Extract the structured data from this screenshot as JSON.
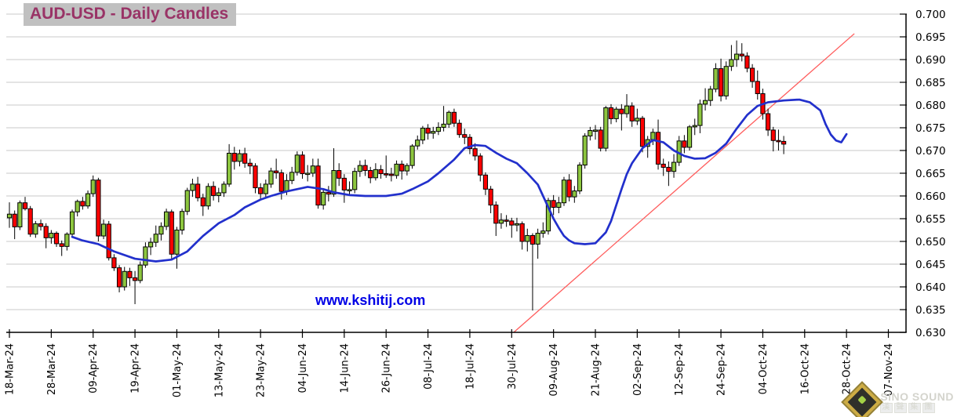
{
  "title": "AUD-USD - Daily Candles",
  "watermark": "www.kshitij.com",
  "brand": {
    "name": "SiNO SOUND",
    "name_cn": "漢聲集團"
  },
  "colors": {
    "background": "#ffffff",
    "title_text": "#993366",
    "title_bg": "#c0c0c0",
    "watermark_text": "#0000e6",
    "gridline": "#c9c9c9",
    "axis": "#000000",
    "candle_up": "#8dc63f",
    "candle_down": "#ff0000",
    "candle_outline": "#000000",
    "ma_line": "#2230cc",
    "trend_line": "#ff5c5c"
  },
  "chart_data": {
    "type": "candlestick",
    "title": "AUD-USD - Daily Candles",
    "grid": "horizontal-on",
    "legend": "none",
    "y_axis": {
      "side": "right",
      "min": 0.63,
      "max": 0.7,
      "step": 0.005,
      "tick_labels": [
        "0.700",
        "0.695",
        "0.690",
        "0.685",
        "0.680",
        "0.675",
        "0.670",
        "0.665",
        "0.660",
        "0.655",
        "0.650",
        "0.645",
        "0.640",
        "0.635",
        "0.630"
      ]
    },
    "x_axis": {
      "side": "bottom",
      "tick_every_days": 8,
      "label_rotation_deg": -90,
      "tick_labels": [
        "18-Mar-24",
        "28-Mar-24",
        "09-Apr-24",
        "19-Apr-24",
        "01-May-24",
        "13-May-24",
        "23-May-24",
        "04-Jun-24",
        "14-Jun-24",
        "26-Jun-24",
        "08-Jul-24",
        "18-Jul-24",
        "30-Jul-24",
        "09-Aug-24",
        "21-Aug-24",
        "02-Sep-24",
        "12-Sep-24",
        "24-Sep-24",
        "04-Oct-24",
        "16-Oct-24",
        "28-Oct-24",
        "07-Nov-24"
      ],
      "total_slots": 169
    },
    "candles_format": [
      "open",
      "high",
      "low",
      "close"
    ],
    "candles": [
      [
        0.6552,
        0.6586,
        0.653,
        0.656
      ],
      [
        0.656,
        0.6568,
        0.6505,
        0.6532
      ],
      [
        0.6532,
        0.659,
        0.6525,
        0.6585
      ],
      [
        0.6585,
        0.6598,
        0.6568,
        0.6572
      ],
      [
        0.6572,
        0.6578,
        0.651,
        0.6516
      ],
      [
        0.6516,
        0.6545,
        0.6508,
        0.6539
      ],
      [
        0.6539,
        0.6548,
        0.6524,
        0.6533
      ],
      [
        0.6533,
        0.654,
        0.6485,
        0.6508
      ],
      [
        0.6508,
        0.6525,
        0.6495,
        0.6518
      ],
      [
        0.6518,
        0.6522,
        0.6488,
        0.6495
      ],
      [
        0.6495,
        0.6502,
        0.6468,
        0.6489
      ],
      [
        0.6489,
        0.652,
        0.648,
        0.6516
      ],
      [
        0.6516,
        0.657,
        0.651,
        0.6565
      ],
      [
        0.6565,
        0.6592,
        0.6555,
        0.6588
      ],
      [
        0.6588,
        0.6598,
        0.657,
        0.6578
      ],
      [
        0.6578,
        0.6612,
        0.6572,
        0.6605
      ],
      [
        0.6605,
        0.6645,
        0.6598,
        0.6635
      ],
      [
        0.6635,
        0.664,
        0.65,
        0.6512
      ],
      [
        0.6512,
        0.6548,
        0.6505,
        0.6538
      ],
      [
        0.6538,
        0.6545,
        0.6458,
        0.6464
      ],
      [
        0.6464,
        0.6472,
        0.6435,
        0.6442
      ],
      [
        0.6442,
        0.6448,
        0.6388,
        0.64
      ],
      [
        0.64,
        0.6444,
        0.6392,
        0.6434
      ],
      [
        0.6434,
        0.6442,
        0.6402,
        0.642
      ],
      [
        0.642,
        0.6435,
        0.6362,
        0.6414
      ],
      [
        0.6414,
        0.6456,
        0.6408,
        0.6448
      ],
      [
        0.6448,
        0.6498,
        0.6442,
        0.6488
      ],
      [
        0.6488,
        0.6508,
        0.647,
        0.6498
      ],
      [
        0.6498,
        0.6535,
        0.6488,
        0.6516
      ],
      [
        0.6516,
        0.6542,
        0.6502,
        0.6533
      ],
      [
        0.6533,
        0.6572,
        0.6525,
        0.6565
      ],
      [
        0.6565,
        0.657,
        0.6462,
        0.6472
      ],
      [
        0.6472,
        0.6532,
        0.644,
        0.6525
      ],
      [
        0.6525,
        0.6572,
        0.6515,
        0.6566
      ],
      [
        0.6566,
        0.6618,
        0.6558,
        0.6612
      ],
      [
        0.6612,
        0.6638,
        0.6598,
        0.6626
      ],
      [
        0.6626,
        0.6642,
        0.6588,
        0.6596
      ],
      [
        0.6596,
        0.6605,
        0.6556,
        0.6578
      ],
      [
        0.6578,
        0.6628,
        0.657,
        0.6621
      ],
      [
        0.6621,
        0.6632,
        0.659,
        0.6601
      ],
      [
        0.6601,
        0.6618,
        0.6586,
        0.6607
      ],
      [
        0.6607,
        0.6632,
        0.6598,
        0.6626
      ],
      [
        0.6626,
        0.6714,
        0.662,
        0.6694
      ],
      [
        0.6694,
        0.6708,
        0.6658,
        0.6676
      ],
      [
        0.6676,
        0.6702,
        0.6665,
        0.6693
      ],
      [
        0.6693,
        0.6706,
        0.6662,
        0.6672
      ],
      [
        0.6672,
        0.6682,
        0.6648,
        0.6666
      ],
      [
        0.6666,
        0.6672,
        0.6606,
        0.6618
      ],
      [
        0.6618,
        0.6628,
        0.6592,
        0.6605
      ],
      [
        0.6605,
        0.6636,
        0.6596,
        0.6626
      ],
      [
        0.6626,
        0.6662,
        0.6618,
        0.6655
      ],
      [
        0.6655,
        0.6682,
        0.6638,
        0.6651
      ],
      [
        0.6651,
        0.6658,
        0.6592,
        0.661
      ],
      [
        0.661,
        0.6648,
        0.6602,
        0.6634
      ],
      [
        0.6634,
        0.6664,
        0.6626,
        0.6652
      ],
      [
        0.6652,
        0.6698,
        0.6645,
        0.669
      ],
      [
        0.669,
        0.6698,
        0.6638,
        0.6649
      ],
      [
        0.6649,
        0.6668,
        0.6632,
        0.665
      ],
      [
        0.665,
        0.6682,
        0.6642,
        0.6666
      ],
      [
        0.6666,
        0.6682,
        0.6572,
        0.658
      ],
      [
        0.658,
        0.6616,
        0.657,
        0.6608
      ],
      [
        0.6608,
        0.6622,
        0.6588,
        0.6604
      ],
      [
        0.6604,
        0.6705,
        0.6598,
        0.6656
      ],
      [
        0.6656,
        0.6672,
        0.6622,
        0.6639
      ],
      [
        0.6639,
        0.6648,
        0.6585,
        0.6613
      ],
      [
        0.6613,
        0.6632,
        0.6602,
        0.6614
      ],
      [
        0.6614,
        0.6662,
        0.6606,
        0.6654
      ],
      [
        0.6654,
        0.6678,
        0.6642,
        0.6667
      ],
      [
        0.6667,
        0.668,
        0.6644,
        0.6656
      ],
      [
        0.6656,
        0.6664,
        0.6628,
        0.664
      ],
      [
        0.664,
        0.6672,
        0.6634,
        0.6658
      ],
      [
        0.6658,
        0.6668,
        0.6638,
        0.6649
      ],
      [
        0.6649,
        0.6689,
        0.664,
        0.6648
      ],
      [
        0.6648,
        0.6662,
        0.6632,
        0.6645
      ],
      [
        0.6645,
        0.6678,
        0.6638,
        0.667
      ],
      [
        0.667,
        0.6678,
        0.6636,
        0.6655
      ],
      [
        0.6655,
        0.6672,
        0.6645,
        0.6667
      ],
      [
        0.6667,
        0.6714,
        0.666,
        0.671
      ],
      [
        0.671,
        0.6733,
        0.6702,
        0.6723
      ],
      [
        0.6723,
        0.6754,
        0.6714,
        0.6749
      ],
      [
        0.6749,
        0.6758,
        0.6724,
        0.6738
      ],
      [
        0.6738,
        0.6752,
        0.6726,
        0.6742
      ],
      [
        0.6742,
        0.6762,
        0.6734,
        0.6751
      ],
      [
        0.6751,
        0.6798,
        0.6742,
        0.6758
      ],
      [
        0.6758,
        0.6788,
        0.675,
        0.6784
      ],
      [
        0.6784,
        0.6792,
        0.6752,
        0.676
      ],
      [
        0.676,
        0.6768,
        0.6728,
        0.6735
      ],
      [
        0.6735,
        0.6748,
        0.6714,
        0.6729
      ],
      [
        0.6729,
        0.6736,
        0.6692,
        0.6704
      ],
      [
        0.6704,
        0.6716,
        0.6678,
        0.6688
      ],
      [
        0.6688,
        0.6694,
        0.6632,
        0.6646
      ],
      [
        0.6646,
        0.6652,
        0.6602,
        0.6615
      ],
      [
        0.6615,
        0.6622,
        0.6562,
        0.658
      ],
      [
        0.658,
        0.6588,
        0.6512,
        0.654
      ],
      [
        0.654,
        0.6562,
        0.6528,
        0.6547
      ],
      [
        0.6547,
        0.6558,
        0.6532,
        0.6545
      ],
      [
        0.6545,
        0.6552,
        0.6508,
        0.6536
      ],
      [
        0.6536,
        0.6552,
        0.6522,
        0.6539
      ],
      [
        0.6539,
        0.6544,
        0.6482,
        0.65
      ],
      [
        0.65,
        0.6528,
        0.6478,
        0.6513
      ],
      [
        0.6513,
        0.6518,
        0.6348,
        0.6494
      ],
      [
        0.6494,
        0.6528,
        0.6462,
        0.6518
      ],
      [
        0.6518,
        0.6542,
        0.6508,
        0.6523
      ],
      [
        0.6523,
        0.6596,
        0.6515,
        0.659
      ],
      [
        0.659,
        0.6602,
        0.6558,
        0.6575
      ],
      [
        0.6575,
        0.6598,
        0.6562,
        0.6585
      ],
      [
        0.6585,
        0.6642,
        0.6578,
        0.6635
      ],
      [
        0.6635,
        0.6648,
        0.6588,
        0.6598
      ],
      [
        0.6598,
        0.6622,
        0.6585,
        0.6611
      ],
      [
        0.6611,
        0.6674,
        0.6604,
        0.6668
      ],
      [
        0.6668,
        0.6738,
        0.666,
        0.6732
      ],
      [
        0.6732,
        0.6752,
        0.6722,
        0.6744
      ],
      [
        0.6744,
        0.6756,
        0.6724,
        0.6745
      ],
      [
        0.6745,
        0.6752,
        0.6698,
        0.6705
      ],
      [
        0.6705,
        0.6798,
        0.6698,
        0.6794
      ],
      [
        0.6794,
        0.6802,
        0.6758,
        0.677
      ],
      [
        0.677,
        0.6796,
        0.6762,
        0.6791
      ],
      [
        0.6791,
        0.6802,
        0.6744,
        0.6781
      ],
      [
        0.6781,
        0.6824,
        0.6772,
        0.6798
      ],
      [
        0.6798,
        0.6806,
        0.6752,
        0.6765
      ],
      [
        0.6765,
        0.6792,
        0.6756,
        0.6771
      ],
      [
        0.6771,
        0.6776,
        0.6696,
        0.6709
      ],
      [
        0.6709,
        0.6732,
        0.6684,
        0.6724
      ],
      [
        0.6724,
        0.6748,
        0.6712,
        0.674
      ],
      [
        0.674,
        0.6768,
        0.6658,
        0.667
      ],
      [
        0.667,
        0.6682,
        0.6644,
        0.6663
      ],
      [
        0.6663,
        0.6676,
        0.6622,
        0.6654
      ],
      [
        0.6654,
        0.6692,
        0.664,
        0.6674
      ],
      [
        0.6674,
        0.6732,
        0.6666,
        0.6721
      ],
      [
        0.6721,
        0.6734,
        0.6694,
        0.6707
      ],
      [
        0.6707,
        0.6756,
        0.67,
        0.6752
      ],
      [
        0.6752,
        0.677,
        0.6734,
        0.6755
      ],
      [
        0.6755,
        0.6812,
        0.6738,
        0.6802
      ],
      [
        0.6802,
        0.6837,
        0.6788,
        0.681
      ],
      [
        0.681,
        0.6842,
        0.6798,
        0.6835
      ],
      [
        0.6835,
        0.6892,
        0.6828,
        0.688
      ],
      [
        0.688,
        0.6902,
        0.6808,
        0.682
      ],
      [
        0.682,
        0.6896,
        0.6812,
        0.6885
      ],
      [
        0.6885,
        0.6932,
        0.6875,
        0.69
      ],
      [
        0.69,
        0.6942,
        0.6884,
        0.6912
      ],
      [
        0.6912,
        0.6936,
        0.6896,
        0.6908
      ],
      [
        0.6908,
        0.6916,
        0.6872,
        0.6881
      ],
      [
        0.6881,
        0.689,
        0.6838,
        0.6852
      ],
      [
        0.6852,
        0.6876,
        0.6812,
        0.6825
      ],
      [
        0.6825,
        0.6836,
        0.6768,
        0.6781
      ],
      [
        0.6781,
        0.6792,
        0.6732,
        0.6745
      ],
      [
        0.6745,
        0.6752,
        0.6698,
        0.6722
      ],
      [
        0.6722,
        0.6746,
        0.67,
        0.672
      ],
      [
        0.672,
        0.6732,
        0.6692,
        0.6714
      ]
    ],
    "ma_line": {
      "name": "moving-average",
      "points": [
        [
          12,
          0.651
        ],
        [
          14,
          0.6502
        ],
        [
          17,
          0.6494
        ],
        [
          20,
          0.6478
        ],
        [
          24,
          0.6462
        ],
        [
          28,
          0.6456
        ],
        [
          31,
          0.646
        ],
        [
          34,
          0.6478
        ],
        [
          37,
          0.6512
        ],
        [
          40,
          0.654
        ],
        [
          43,
          0.6558
        ],
        [
          45,
          0.6575
        ],
        [
          48,
          0.6592
        ],
        [
          50,
          0.66
        ],
        [
          53,
          0.661
        ],
        [
          57,
          0.662
        ],
        [
          60,
          0.6615
        ],
        [
          62,
          0.6608
        ],
        [
          65,
          0.6602
        ],
        [
          68,
          0.66
        ],
        [
          72,
          0.66
        ],
        [
          75,
          0.6605
        ],
        [
          77,
          0.6615
        ],
        [
          80,
          0.6632
        ],
        [
          82,
          0.665
        ],
        [
          85,
          0.668
        ],
        [
          87,
          0.6705
        ],
        [
          89,
          0.6712
        ],
        [
          91,
          0.671
        ],
        [
          93,
          0.6695
        ],
        [
          95,
          0.6682
        ],
        [
          97,
          0.6672
        ],
        [
          99,
          0.665
        ],
        [
          101,
          0.6625
        ],
        [
          102,
          0.66
        ],
        [
          103,
          0.6575
        ],
        [
          104,
          0.655
        ],
        [
          105,
          0.653
        ],
        [
          106,
          0.6512
        ],
        [
          107,
          0.6502
        ],
        [
          108,
          0.6496
        ],
        [
          110,
          0.6494
        ],
        [
          112,
          0.6496
        ],
        [
          114,
          0.652
        ],
        [
          115,
          0.6545
        ],
        [
          116,
          0.658
        ],
        [
          117,
          0.6615
        ],
        [
          118,
          0.6648
        ],
        [
          119,
          0.6672
        ],
        [
          121,
          0.6705
        ],
        [
          123,
          0.6723
        ],
        [
          125,
          0.6718
        ],
        [
          127,
          0.67
        ],
        [
          129,
          0.6688
        ],
        [
          131,
          0.6682
        ],
        [
          133,
          0.6683
        ],
        [
          135,
          0.6695
        ],
        [
          137,
          0.6715
        ],
        [
          139,
          0.6748
        ],
        [
          141,
          0.6778
        ],
        [
          143,
          0.6798
        ],
        [
          145,
          0.6806
        ],
        [
          148,
          0.681
        ],
        [
          151,
          0.6812
        ],
        [
          153,
          0.6806
        ],
        [
          155,
          0.6788
        ],
        [
          156,
          0.6758
        ],
        [
          157,
          0.6735
        ],
        [
          158,
          0.6722
        ],
        [
          159,
          0.6718
        ],
        [
          160,
          0.6736
        ]
      ]
    },
    "trend_line": {
      "name": "rising-support-trendline",
      "from": [
        96.4,
        0.63
      ],
      "to": [
        161.5,
        0.6957
      ]
    }
  }
}
